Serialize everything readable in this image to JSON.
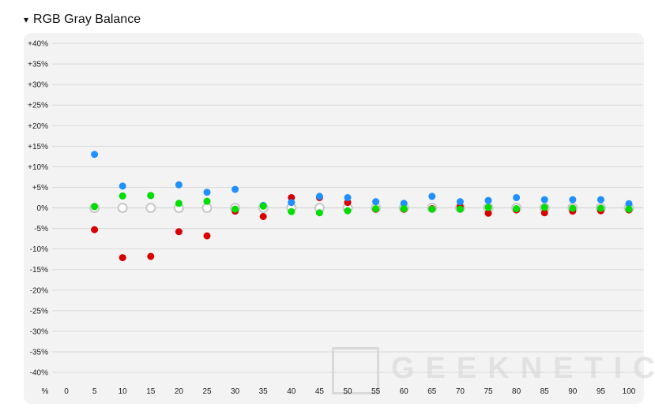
{
  "header": {
    "toggle_glyph": "▾",
    "title": "RGB Gray Balance"
  },
  "watermark": {
    "text": "GEEKNETIC"
  },
  "chart_data": {
    "type": "scatter",
    "title": "RGB Gray Balance",
    "ylabel_unit": "%",
    "ylim": [
      -40,
      40
    ],
    "y_ticks": [
      "+40%",
      "+35%",
      "+30%",
      "+25%",
      "+20%",
      "+15%",
      "+10%",
      "+5%",
      "0%",
      "-5%",
      "-10%",
      "-15%",
      "-20%",
      "-25%",
      "-30%",
      "-35%",
      "-40%"
    ],
    "x": [
      0,
      5,
      10,
      15,
      20,
      25,
      30,
      35,
      40,
      45,
      50,
      55,
      60,
      65,
      70,
      75,
      80,
      85,
      90,
      95,
      100
    ],
    "grid": true,
    "series": [
      {
        "color_key": "red",
        "color": "#d90000",
        "values": [
          null,
          -5.3,
          -12.1,
          -11.8,
          -5.8,
          -6.8,
          -0.8,
          -2.1,
          2.5,
          2.5,
          1.3,
          -0.3,
          -0.3,
          -0.2,
          0.3,
          -1.3,
          -0.5,
          -1.2,
          -0.8,
          -0.7,
          -0.5
        ]
      },
      {
        "color_key": "blue",
        "color": "#1e90ff",
        "values": [
          null,
          13.0,
          5.3,
          3.0,
          5.6,
          3.8,
          4.5,
          0.6,
          1.3,
          2.8,
          2.5,
          1.5,
          1.1,
          2.8,
          1.5,
          1.8,
          2.5,
          2.0,
          2.0,
          2.0,
          1.0
        ]
      },
      {
        "color_key": "green",
        "color": "#00dd00",
        "values": [
          null,
          0.3,
          2.9,
          3.0,
          1.1,
          1.6,
          -0.3,
          0.4,
          -0.9,
          -1.2,
          -0.7,
          -0.2,
          -0.2,
          -0.3,
          -0.3,
          0.1,
          -0.2,
          0.1,
          -0.1,
          -0.1,
          -0.3
        ]
      },
      {
        "color_key": "gray",
        "color": "#c8c8c8",
        "values": [
          null,
          0,
          0,
          0,
          0,
          0,
          0,
          0,
          0,
          0,
          0,
          0,
          0,
          0,
          0,
          0,
          0,
          0,
          0,
          0,
          0
        ]
      }
    ]
  }
}
